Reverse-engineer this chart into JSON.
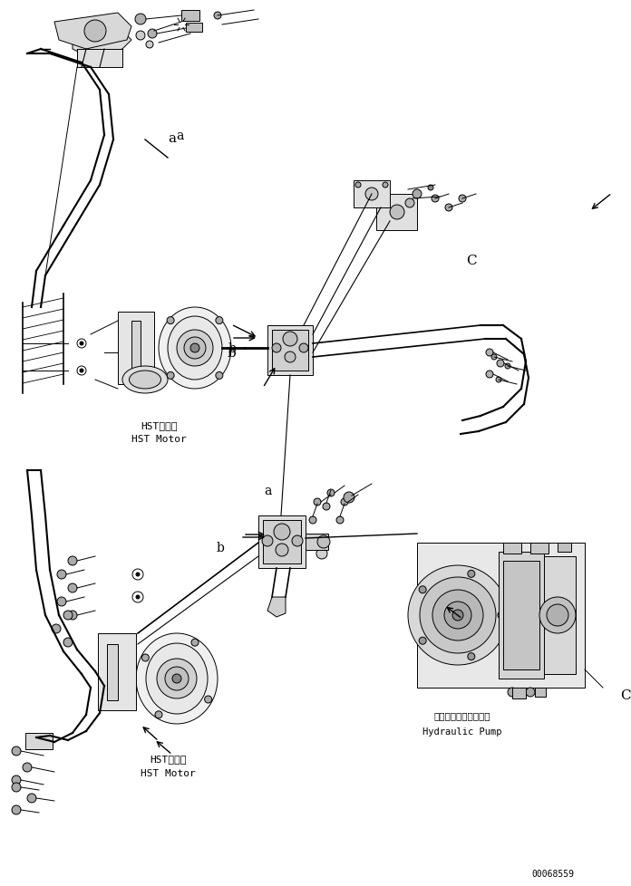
{
  "background_color": "#ffffff",
  "line_color": "#000000",
  "fig_width": 6.96,
  "fig_height": 9.79,
  "dpi": 100,
  "serial_number": "00068559",
  "labels": {
    "hst_motor_jp1": "HSTモータ",
    "hst_motor_en1": "HST Motor",
    "hst_motor_jp2": "HSTモータ",
    "hst_motor_en2": "HST Motor",
    "hydraulic_pump_jp": "ハイドロリックポンプ",
    "hydraulic_pump_en": "Hydraulic Pump"
  },
  "annotations": {
    "a_upper": "a",
    "b_upper": "b",
    "c_upper": "C",
    "a_lower": "a",
    "b_lower": "b",
    "c_lower": "C"
  }
}
